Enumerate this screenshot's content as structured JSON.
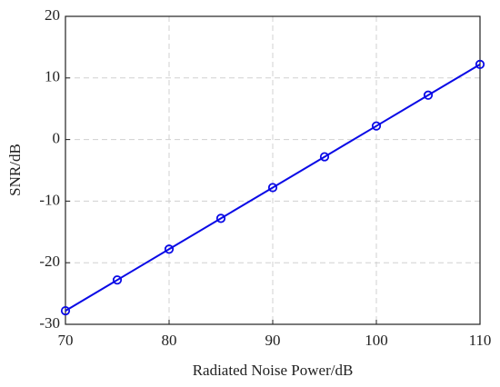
{
  "chart_data": {
    "type": "line",
    "x_label": "Radiated Noise Power/dB",
    "y_label": "SNR/dB",
    "x": [
      70,
      75,
      80,
      85,
      90,
      95,
      100,
      105,
      110
    ],
    "series": [
      {
        "color": "#0a0ae6",
        "values": [
          -27.8,
          -22.8,
          -17.8,
          -12.8,
          -7.8,
          -2.8,
          2.2,
          7.2,
          12.2
        ]
      }
    ],
    "xlim": [
      70,
      110
    ],
    "xticks": [
      70,
      80,
      90,
      100,
      110
    ],
    "ylim": [
      -30,
      20
    ],
    "yticks": [
      -30,
      -20,
      -10,
      0,
      10,
      20
    ],
    "grid": true,
    "marker": "circle"
  }
}
